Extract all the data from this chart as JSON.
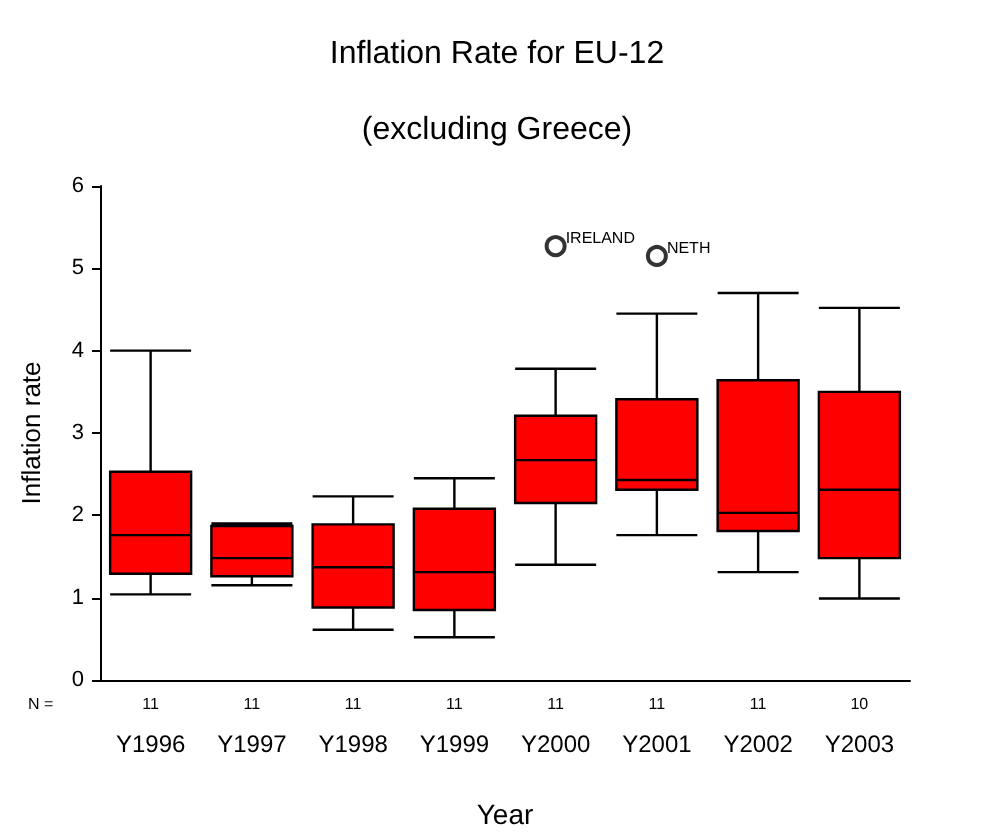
{
  "chart_data": {
    "type": "box",
    "title": "Inflation Rate for EU-12",
    "subtitle": "(excluding Greece)",
    "xlabel": "Year",
    "ylabel": "Inflation rate",
    "categories": [
      "Y1996",
      "Y1997",
      "Y1998",
      "Y1999",
      "Y2000",
      "Y2001",
      "Y2002",
      "Y2003"
    ],
    "series": [
      {
        "color": "#ff0000",
        "boxes": [
          {
            "low": 1.04,
            "q1": 1.29,
            "median": 1.76,
            "q3": 2.53,
            "high": 4.0
          },
          {
            "low": 1.15,
            "q1": 1.26,
            "median": 1.48,
            "q3": 1.87,
            "high": 1.9
          },
          {
            "low": 0.61,
            "q1": 0.88,
            "median": 1.37,
            "q3": 1.89,
            "high": 2.23
          },
          {
            "low": 0.52,
            "q1": 0.85,
            "median": 1.31,
            "q3": 2.08,
            "high": 2.45
          },
          {
            "low": 1.4,
            "q1": 2.15,
            "median": 2.67,
            "q3": 3.21,
            "high": 3.78,
            "outliers": [
              5.27
            ]
          },
          {
            "low": 1.76,
            "q1": 2.31,
            "median": 2.43,
            "q3": 3.41,
            "high": 4.45,
            "outliers": [
              5.15
            ]
          },
          {
            "low": 1.31,
            "q1": 1.81,
            "median": 2.03,
            "q3": 3.64,
            "high": 4.7
          },
          {
            "low": 0.99,
            "q1": 1.48,
            "median": 2.31,
            "q3": 3.5,
            "high": 4.52
          }
        ]
      }
    ],
    "ylim": [
      0,
      6
    ],
    "yticks": [
      0,
      1,
      2,
      3,
      4,
      5,
      6
    ],
    "grid": false,
    "marker": "circle",
    "annotations": [
      "IRELAND",
      "NETH",
      "N =",
      "11",
      "11",
      "11",
      "11",
      "11",
      "11",
      "11",
      "10"
    ]
  }
}
